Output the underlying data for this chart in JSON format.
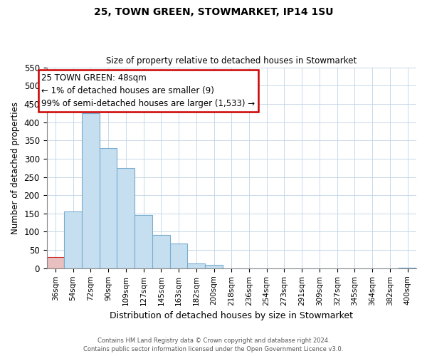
{
  "title": "25, TOWN GREEN, STOWMARKET, IP14 1SU",
  "subtitle": "Size of property relative to detached houses in Stowmarket",
  "xlabel": "Distribution of detached houses by size in Stowmarket",
  "ylabel": "Number of detached properties",
  "bar_labels": [
    "36sqm",
    "54sqm",
    "72sqm",
    "90sqm",
    "109sqm",
    "127sqm",
    "145sqm",
    "163sqm",
    "182sqm",
    "200sqm",
    "218sqm",
    "236sqm",
    "254sqm",
    "273sqm",
    "291sqm",
    "309sqm",
    "327sqm",
    "345sqm",
    "364sqm",
    "382sqm",
    "400sqm"
  ],
  "bar_values": [
    30,
    155,
    425,
    328,
    274,
    145,
    91,
    67,
    14,
    10,
    0,
    0,
    0,
    0,
    0,
    0,
    0,
    0,
    0,
    0,
    2
  ],
  "bar_color_normal": "#c5dff0",
  "bar_color_highlight": "#e8c0c0",
  "bar_edge_normal": "#7aaccf",
  "bar_edge_highlight": "#cc2222",
  "highlight_index": 0,
  "annotation_text": "25 TOWN GREEN: 48sqm\n← 1% of detached houses are smaller (9)\n99% of semi-detached houses are larger (1,533) →",
  "annotation_box_color": "#ffffff",
  "annotation_box_edgecolor": "#cc0000",
  "ylim": [
    0,
    550
  ],
  "yticks": [
    0,
    50,
    100,
    150,
    200,
    250,
    300,
    350,
    400,
    450,
    500,
    550
  ],
  "footer1": "Contains HM Land Registry data © Crown copyright and database right 2024.",
  "footer2": "Contains public sector information licensed under the Open Government Licence v3.0.",
  "figsize": [
    6.0,
    5.0
  ],
  "dpi": 100
}
